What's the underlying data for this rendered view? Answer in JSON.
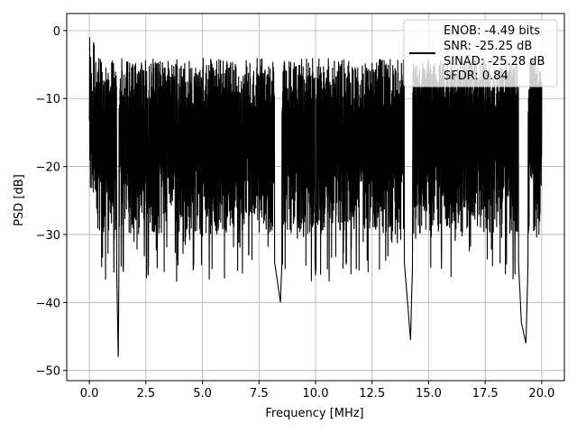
{
  "chart_data": {
    "type": "line",
    "xlabel": "Frequency [MHz]",
    "ylabel": "PSD [dB]",
    "xlim": [
      -1.0,
      21.0
    ],
    "ylim": [
      -51.5,
      2.5
    ],
    "x_ticks": [
      0.0,
      2.5,
      5.0,
      7.5,
      10.0,
      12.5,
      15.0,
      17.5,
      20.0
    ],
    "x_tick_labels": [
      "0.0",
      "2.5",
      "5.0",
      "7.5",
      "10.0",
      "12.5",
      "15.0",
      "17.5",
      "20.0"
    ],
    "y_ticks": [
      0,
      -10,
      -20,
      -30,
      -40,
      -50
    ],
    "y_tick_labels": [
      "0",
      "−10",
      "−20",
      "−30",
      "−40",
      "−50"
    ],
    "grid": true,
    "legend_position": "top-right",
    "legend_lines": [
      "ENOB: -4.49 bits",
      "SNR: -25.25 dB",
      "SINAD: -25.28 dB",
      "SFDR: 0.84"
    ],
    "series_color": "#000000",
    "series": [
      {
        "x_start": 0.0,
        "x_end": 20.0,
        "description": "dense noisy spectrum",
        "points": [
          [
            0.0,
            -6
          ],
          [
            0.02,
            0
          ],
          [
            0.05,
            -18
          ],
          [
            0.08,
            -3
          ],
          [
            0.12,
            -22
          ],
          [
            0.2,
            -9
          ],
          [
            0.3,
            -26
          ],
          [
            0.45,
            -12
          ],
          [
            0.6,
            -31
          ],
          [
            0.75,
            -14
          ],
          [
            0.9,
            -27
          ],
          [
            1.1,
            -13
          ],
          [
            1.28,
            -49
          ],
          [
            1.35,
            -12
          ],
          [
            1.5,
            -35.5
          ],
          [
            1.7,
            -10
          ],
          [
            2.1,
            -33
          ],
          [
            2.4,
            -8
          ],
          [
            2.6,
            -36
          ],
          [
            2.9,
            -5
          ],
          [
            3.1,
            -29
          ],
          [
            3.5,
            -7
          ],
          [
            4.0,
            -30
          ],
          [
            4.4,
            -6
          ],
          [
            4.6,
            -35
          ],
          [
            5.2,
            -4
          ],
          [
            5.5,
            -31
          ],
          [
            6.0,
            -7
          ],
          [
            6.4,
            -33
          ],
          [
            6.9,
            -3
          ],
          [
            7.3,
            -28
          ],
          [
            7.7,
            -4
          ],
          [
            8.1,
            -32
          ],
          [
            8.45,
            -40
          ],
          [
            8.8,
            -6
          ],
          [
            9.3,
            -30
          ],
          [
            9.6,
            -5
          ],
          [
            10.0,
            -36
          ],
          [
            10.5,
            -4
          ],
          [
            10.9,
            -34
          ],
          [
            11.4,
            -6
          ],
          [
            11.9,
            -29
          ],
          [
            12.3,
            -5
          ],
          [
            12.8,
            -27
          ],
          [
            13.4,
            -6
          ],
          [
            13.9,
            -33
          ],
          [
            14.2,
            -45.5
          ],
          [
            14.5,
            -7
          ],
          [
            15.0,
            -31
          ],
          [
            15.5,
            -6
          ],
          [
            16.0,
            -30
          ],
          [
            16.5,
            -7
          ],
          [
            17.0,
            -34
          ],
          [
            17.6,
            -8
          ],
          [
            18.2,
            -32
          ],
          [
            18.6,
            -8
          ],
          [
            19.1,
            -43
          ],
          [
            19.3,
            -46
          ],
          [
            19.6,
            -9
          ],
          [
            19.9,
            -27
          ],
          [
            20.0,
            -12
          ]
        ]
      }
    ]
  }
}
